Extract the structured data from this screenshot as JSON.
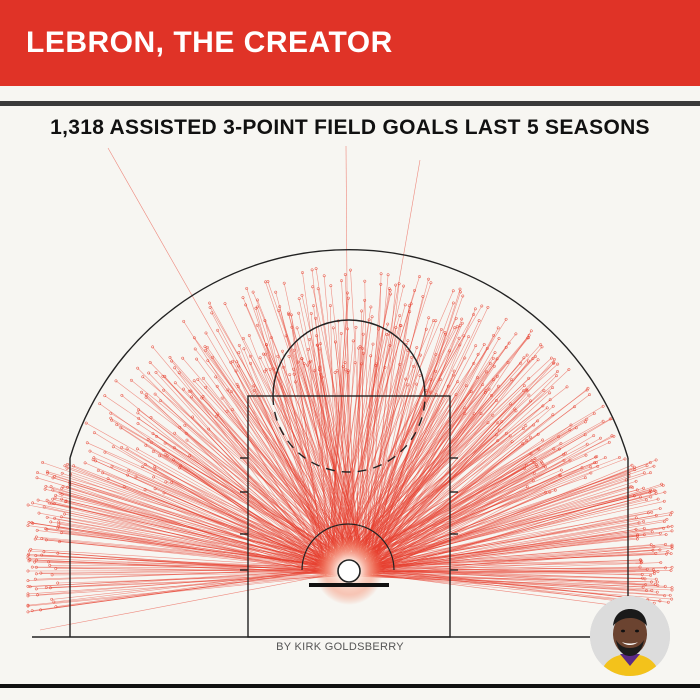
{
  "header": {
    "title": "LEBRON, THE CREATOR"
  },
  "subtitle": "1,318 ASSISTED 3-POINT FIELD GOALS LAST 5 SEASONS",
  "byline": "BY KIRK GOLDSBERRY",
  "colors": {
    "banner": "#e03327",
    "line": "#e8402f",
    "court": "#222222",
    "background": "#f7f6f2"
  },
  "chart_data": {
    "type": "scatter",
    "description_kind": "assist-origin-to-shot lines on half court",
    "count": 1318,
    "title": "1,318 ASSISTED 3-POINT FIELD GOALS LAST 5 SEASONS"
  },
  "avatar": {
    "icon": "player-headshot"
  }
}
